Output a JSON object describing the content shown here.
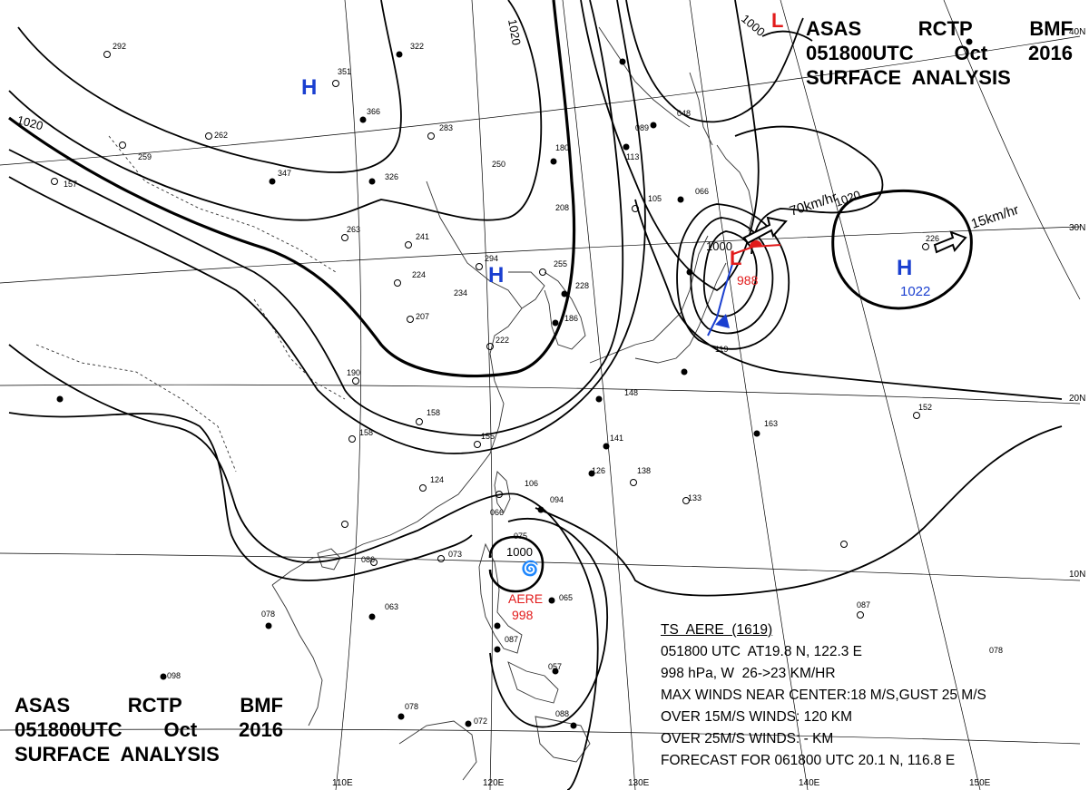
{
  "header": {
    "line1": [
      "ASAS",
      "RCTP",
      "BMF"
    ],
    "line2": [
      "051800UTC",
      "Oct",
      "2016"
    ],
    "line3": "SURFACE  ANALYSIS"
  },
  "typhoon_info": {
    "line1": "TS  AERE  (1619)",
    "line2": "051800 UTC  AT19.8 N, 122.3 E",
    "line3": "998 hPa, W  26->23 KM/HR",
    "line4": "MAX WINDS NEAR CENTER:18 M/S,GUST 25 M/S",
    "line5": "OVER 15M/S WINDS: 120 KM",
    "line6": "OVER 25M/S WINDS: - KM",
    "line7": "FORECAST FOR 061800 UTC 20.1 N, 116.8 E"
  },
  "isobar_labels": [
    "1020",
    "1020",
    "1000",
    "1000",
    "1000",
    "1020"
  ],
  "pressure_centers": [
    {
      "type": "H",
      "color": "#1a3fd0"
    },
    {
      "type": "H",
      "color": "#1a3fd0"
    },
    {
      "type": "H",
      "color": "#1a3fd0",
      "value": "1022"
    },
    {
      "type": "L",
      "color": "#e21b1b",
      "value": "988"
    },
    {
      "type": "L",
      "color": "#e21b1b"
    }
  ],
  "storm": {
    "name": "AERE",
    "pressure": "998",
    "color": "#e21b1b"
  },
  "motion_labels": [
    "70km/hr",
    "15km/hr"
  ],
  "latitude_labels": [
    "40N",
    "30N",
    "20N",
    "10N"
  ],
  "longitude_labels": [
    "110E",
    "120E",
    "130E",
    "140E",
    "150E"
  ],
  "colors": {
    "high": "#1a3fd0",
    "low": "#e21b1b",
    "line": "#000000"
  },
  "station_values": [
    "292",
    "322",
    "351",
    "366",
    "283",
    "262",
    "347",
    "326",
    "259",
    "157",
    "263",
    "241",
    "224",
    "234",
    "207",
    "294",
    "255",
    "228",
    "186",
    "222",
    "190",
    "158",
    "158",
    "155",
    "124",
    "106",
    "094",
    "086",
    "073",
    "063",
    "078",
    "066",
    "075",
    "065",
    "087",
    "057",
    "088",
    "072",
    "078",
    "098",
    "089",
    "048",
    "113",
    "105",
    "066",
    "180",
    "250",
    "208",
    "119",
    "148",
    "141",
    "126",
    "138",
    "133",
    "163",
    "152",
    "226",
    "087",
    "078"
  ]
}
